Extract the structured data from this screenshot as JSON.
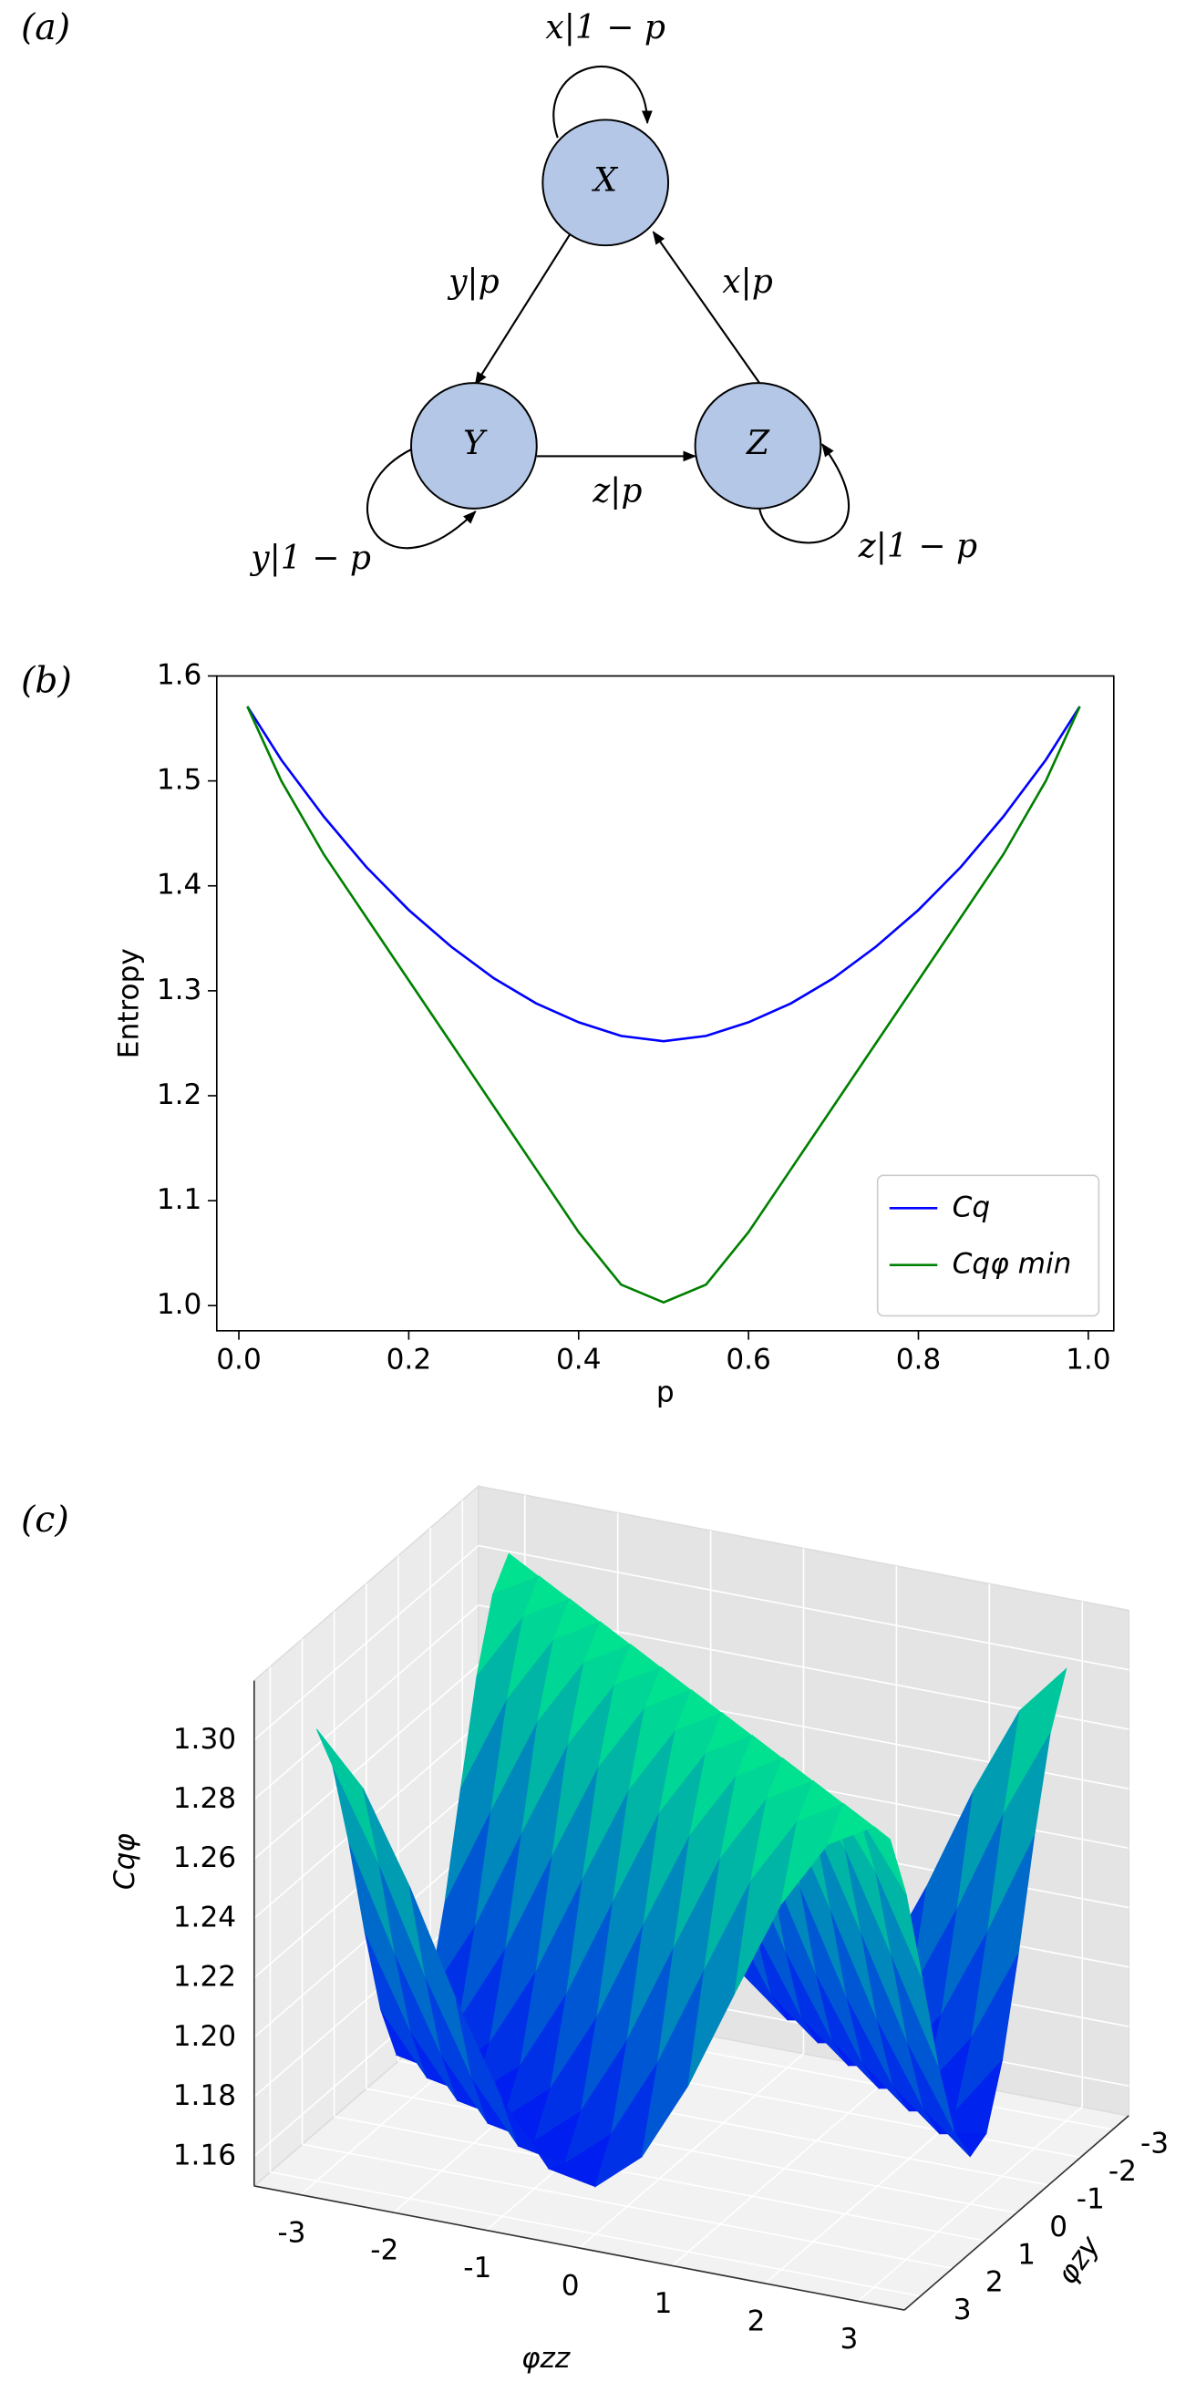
{
  "panel_labels": [
    "(a)",
    "(b)",
    "(c)"
  ],
  "diagram": {
    "nodes": [
      "X",
      "Y",
      "Z"
    ],
    "edges": [
      "x|1 − p",
      "y|p",
      "x|p",
      "z|p",
      "y|1 − p",
      "z|1 − p"
    ]
  },
  "chart_data": [
    {
      "type": "line",
      "xlabel": "p",
      "ylabel": "Entropy",
      "x": [
        0.01,
        0.05,
        0.1,
        0.15,
        0.2,
        0.25,
        0.3,
        0.35,
        0.4,
        0.45,
        0.5,
        0.55,
        0.6,
        0.65,
        0.7,
        0.75,
        0.8,
        0.85,
        0.9,
        0.95,
        0.99
      ],
      "series": [
        {
          "name": "Cq",
          "color": "#0000ff",
          "values": [
            1.571,
            1.52,
            1.466,
            1.418,
            1.377,
            1.342,
            1.312,
            1.288,
            1.27,
            1.257,
            1.252,
            1.257,
            1.27,
            1.288,
            1.312,
            1.342,
            1.377,
            1.418,
            1.466,
            1.52,
            1.571
          ]
        },
        {
          "name": "Cqφ min",
          "color": "#008000",
          "values": [
            1.571,
            1.5,
            1.43,
            1.37,
            1.31,
            1.25,
            1.19,
            1.13,
            1.07,
            1.02,
            1.003,
            1.02,
            1.07,
            1.13,
            1.19,
            1.25,
            1.31,
            1.37,
            1.43,
            1.5,
            1.571
          ]
        }
      ],
      "xlim": [
        -0.026,
        1.03
      ],
      "ylim": [
        0.976,
        1.6
      ],
      "xticks": [
        {
          "value": 0,
          "label": "0.0"
        },
        0.2,
        0.4,
        0.6,
        0.8,
        {
          "value": 1,
          "label": "1.0"
        }
      ],
      "yticks": [
        {
          "value": 1,
          "label": "1.0"
        },
        1.1,
        1.2,
        1.3,
        1.4,
        1.5,
        1.6
      ],
      "grid": false,
      "legend": "lower right"
    },
    {
      "type": "surface",
      "xlabel": "φzz",
      "ylabel": "φzy",
      "zlabel": "Cqφ",
      "colormap": "winter",
      "x": [
        -3,
        -2.5,
        -2,
        -1.5,
        -1,
        -0.5,
        0,
        0.5,
        1,
        1.5,
        2,
        2.5,
        3
      ],
      "y": [
        -3,
        -2.5,
        -2,
        -1.5,
        -1,
        -0.5,
        0,
        0.5,
        1,
        1.5,
        2,
        2.5,
        3
      ],
      "z": [
        [
          1.305,
          1.296,
          1.273,
          1.24,
          1.206,
          1.179,
          1.166,
          1.169,
          1.189,
          1.22,
          1.255,
          1.285,
          1.302
        ],
        [
          1.296,
          1.305,
          1.296,
          1.273,
          1.24,
          1.206,
          1.179,
          1.166,
          1.169,
          1.189,
          1.22,
          1.255,
          1.285
        ],
        [
          1.273,
          1.296,
          1.305,
          1.296,
          1.273,
          1.24,
          1.206,
          1.179,
          1.166,
          1.169,
          1.189,
          1.22,
          1.255
        ],
        [
          1.24,
          1.273,
          1.296,
          1.305,
          1.296,
          1.273,
          1.24,
          1.206,
          1.179,
          1.166,
          1.169,
          1.189,
          1.22
        ],
        [
          1.206,
          1.24,
          1.273,
          1.296,
          1.305,
          1.296,
          1.273,
          1.24,
          1.206,
          1.179,
          1.166,
          1.169,
          1.189
        ],
        [
          1.179,
          1.206,
          1.24,
          1.273,
          1.296,
          1.305,
          1.296,
          1.273,
          1.24,
          1.206,
          1.179,
          1.166,
          1.169
        ],
        [
          1.166,
          1.179,
          1.206,
          1.24,
          1.273,
          1.296,
          1.305,
          1.296,
          1.273,
          1.24,
          1.206,
          1.179,
          1.166
        ],
        [
          1.169,
          1.166,
          1.179,
          1.206,
          1.24,
          1.273,
          1.296,
          1.305,
          1.296,
          1.273,
          1.24,
          1.206,
          1.179
        ],
        [
          1.189,
          1.169,
          1.166,
          1.179,
          1.206,
          1.24,
          1.273,
          1.296,
          1.305,
          1.296,
          1.273,
          1.24,
          1.206
        ],
        [
          1.22,
          1.189,
          1.169,
          1.166,
          1.179,
          1.206,
          1.24,
          1.273,
          1.296,
          1.305,
          1.296,
          1.273,
          1.24
        ],
        [
          1.255,
          1.22,
          1.189,
          1.169,
          1.166,
          1.179,
          1.206,
          1.24,
          1.273,
          1.296,
          1.305,
          1.296,
          1.273
        ],
        [
          1.285,
          1.255,
          1.22,
          1.189,
          1.169,
          1.166,
          1.179,
          1.206,
          1.24,
          1.273,
          1.296,
          1.305,
          1.296
        ],
        [
          1.302,
          1.285,
          1.255,
          1.22,
          1.189,
          1.169,
          1.166,
          1.179,
          1.206,
          1.24,
          1.273,
          1.296,
          1.305
        ]
      ],
      "xlim": [
        -3.5,
        3.5
      ],
      "ylim": [
        -3.5,
        3.5
      ],
      "zlim": [
        1.15,
        1.32
      ],
      "xticks": [
        -3,
        -2,
        -1,
        0,
        1,
        2,
        3
      ],
      "yticks": [
        -3,
        -2,
        -1,
        0,
        1,
        2,
        3
      ],
      "zticks": [
        1.16,
        1.18,
        {
          "value": 1.2,
          "label": "1.20"
        },
        1.22,
        1.24,
        1.26,
        1.28,
        {
          "value": 1.3,
          "label": "1.30"
        }
      ]
    }
  ]
}
